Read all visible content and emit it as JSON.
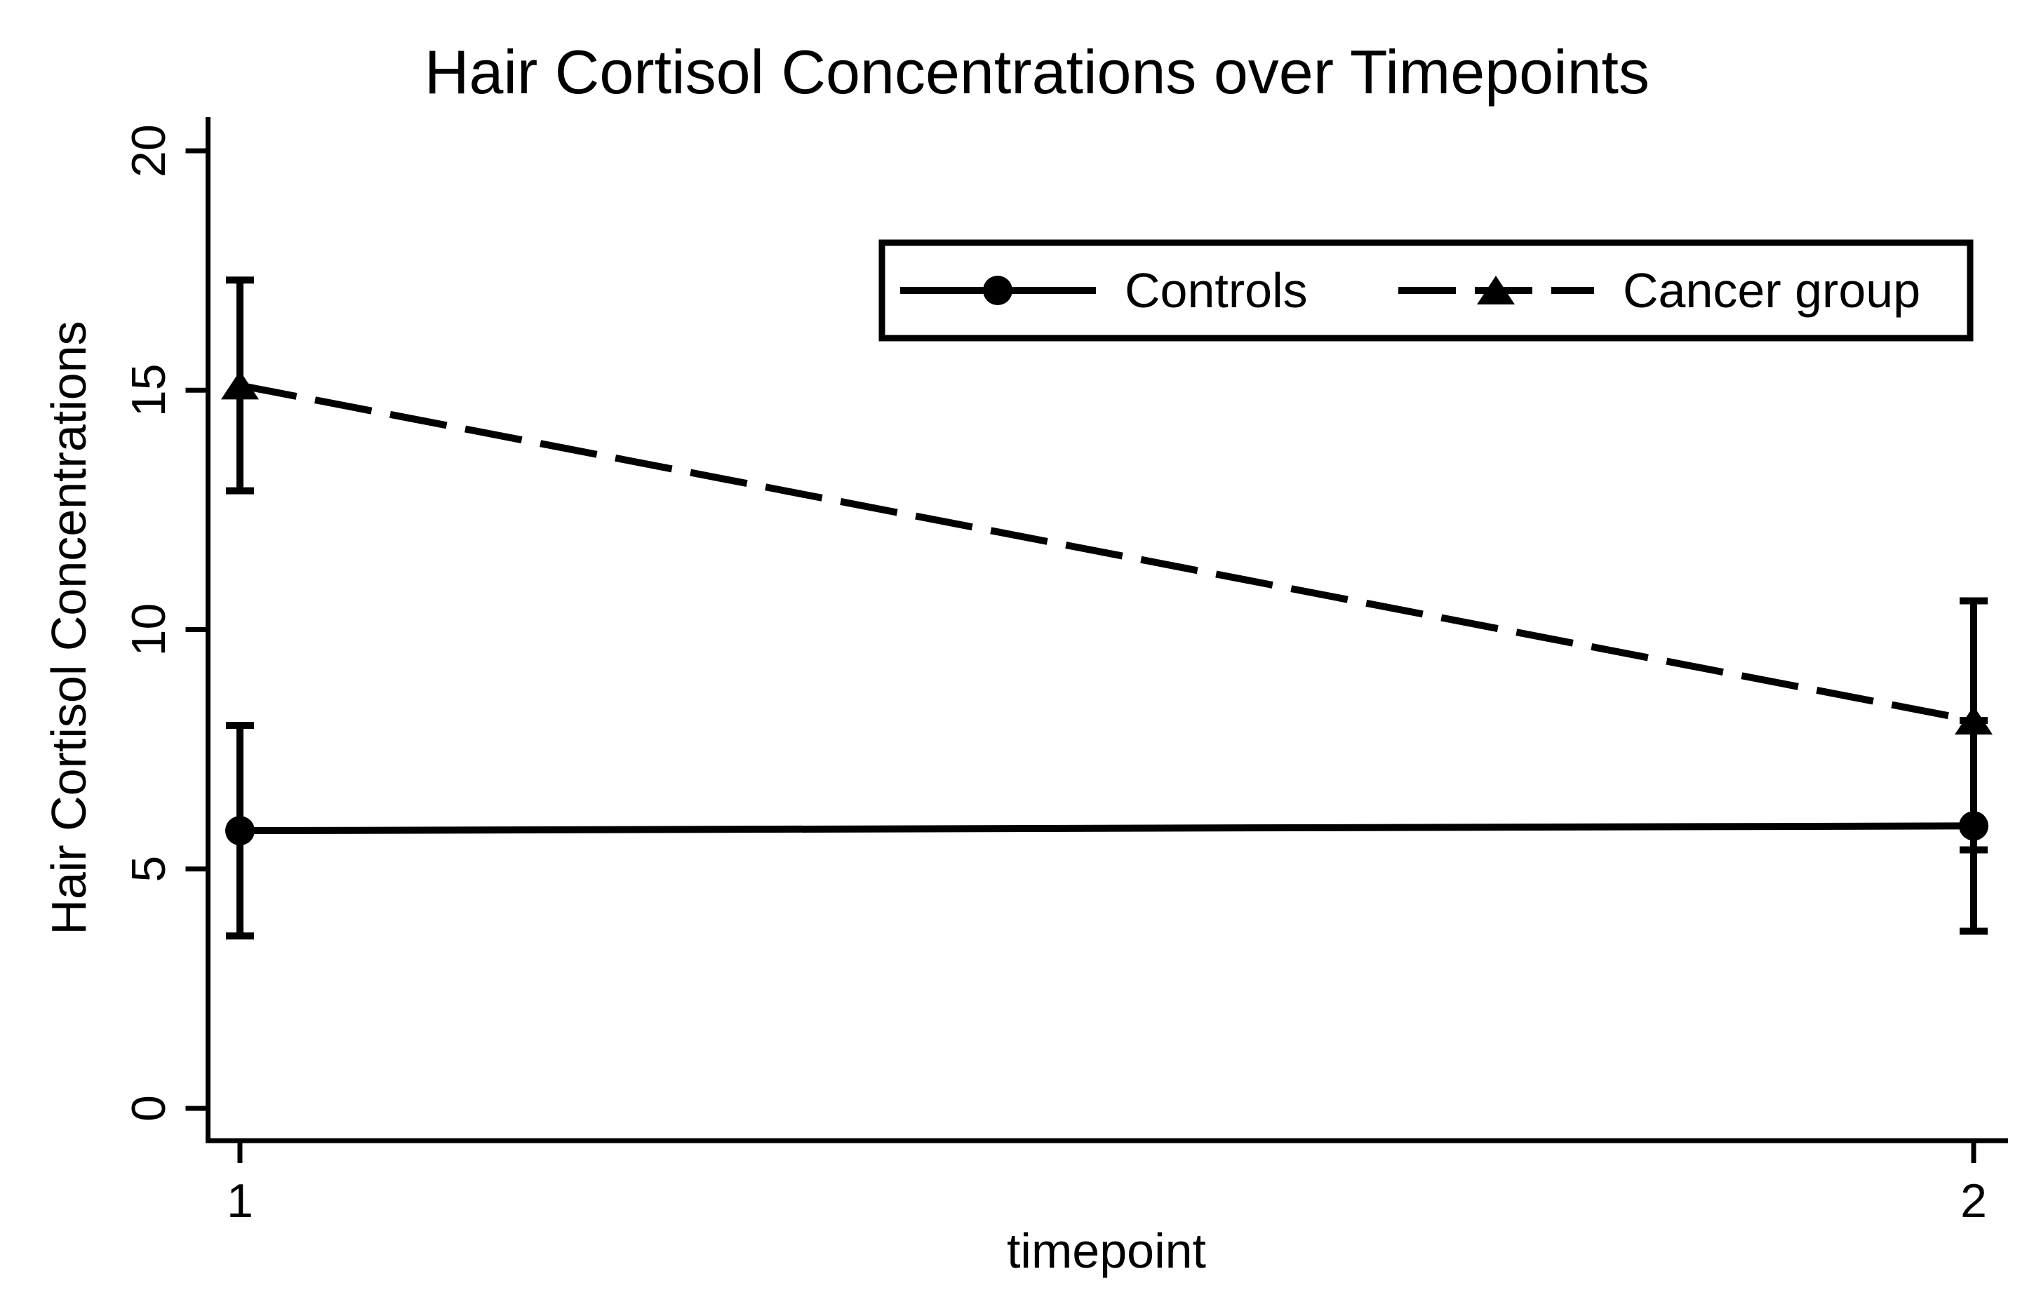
{
  "figure": {
    "background_color": "#ffffff",
    "foreground_color": "#000000"
  },
  "chart_data": {
    "type": "line",
    "title": "Hair Cortisol Concentrations over Timepoints",
    "xlabel": "timepoint",
    "ylabel": "Hair Cortisol Concentrations",
    "x": [
      1,
      2
    ],
    "x_tick_labels": [
      "1",
      "2"
    ],
    "y_ticks": [
      0,
      5,
      10,
      15,
      20
    ],
    "y_tick_labels": [
      "0",
      "5",
      "10",
      "15",
      "20"
    ],
    "ylim": [
      0,
      20
    ],
    "grid": false,
    "error_bars": true,
    "legend_position": "inside-upper-right",
    "series": [
      {
        "name": "Controls",
        "marker": "circle",
        "marker_icon": "filled-circle-icon",
        "line_style": "solid",
        "color": "#000000",
        "values": [
          5.8,
          5.9
        ],
        "ci_low": [
          3.6,
          3.7
        ],
        "ci_high": [
          8.0,
          8.1
        ]
      },
      {
        "name": "Cancer group",
        "marker": "triangle",
        "marker_icon": "filled-triangle-icon",
        "line_style": "dashed",
        "color": "#000000",
        "values": [
          15.1,
          8.1
        ],
        "ci_low": [
          12.9,
          5.4
        ],
        "ci_high": [
          17.3,
          10.6
        ]
      }
    ]
  }
}
